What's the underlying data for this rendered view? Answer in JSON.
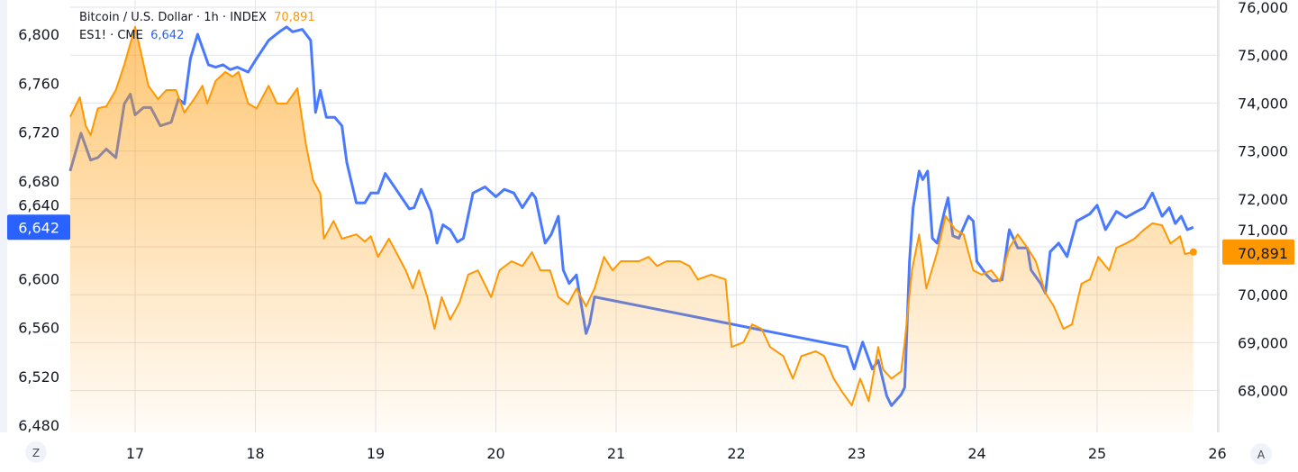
{
  "chart_data": {
    "type": "line",
    "title": "",
    "legend_placement": "top-left",
    "grid": true,
    "x_ticks": [
      "17",
      "18",
      "19",
      "20",
      "21",
      "22",
      "23",
      "24",
      "25",
      "26"
    ],
    "xlim": [
      16.46,
      26.0
    ],
    "left_axis": {
      "ticks": [
        "6,480",
        "6,520",
        "6,560",
        "6,600",
        "6,640",
        "6,680",
        "6,720",
        "6,760",
        "6,800"
      ],
      "tick_values": [
        6480,
        6520,
        6560,
        6600,
        6640,
        6680,
        6720,
        6760,
        6800
      ],
      "ylim": [
        6474,
        6823
      ]
    },
    "right_axis": {
      "ticks": [
        "68,000",
        "69,000",
        "70,000",
        "71,000",
        "72,000",
        "73,000",
        "74,000",
        "75,000",
        "76,000"
      ],
      "tick_values": [
        68000,
        69000,
        70000,
        71000,
        72000,
        73000,
        74000,
        75000,
        76000
      ],
      "ylim": [
        67120,
        76150
      ]
    },
    "series": [
      {
        "name": "Bitcoin / U.S. Dollar · 1h · INDEX",
        "axis": "right",
        "style": "area",
        "color": "#ff9800",
        "last_value": "70,891",
        "x": [
          16.46,
          16.54,
          16.59,
          16.63,
          16.69,
          16.76,
          16.84,
          16.91,
          17.0,
          17.06,
          17.11,
          17.19,
          17.26,
          17.34,
          17.41,
          17.49,
          17.56,
          17.6,
          17.67,
          17.75,
          17.81,
          17.86,
          17.94,
          18.01,
          18.11,
          18.18,
          18.26,
          18.35,
          18.42,
          18.48,
          18.54,
          18.57,
          18.65,
          18.72,
          18.84,
          18.91,
          18.96,
          19.02,
          19.11,
          19.17,
          19.25,
          19.31,
          19.36,
          19.43,
          19.49,
          19.55,
          19.62,
          19.7,
          19.77,
          19.85,
          19.96,
          20.03,
          20.13,
          20.22,
          20.3,
          20.37,
          20.45,
          20.52,
          20.6,
          20.67,
          20.75,
          20.82,
          20.9,
          20.97,
          21.04,
          21.19,
          21.27,
          21.34,
          21.42,
          21.53,
          21.61,
          21.68,
          21.79,
          21.91,
          21.96,
          22.06,
          22.13,
          22.21,
          22.28,
          22.39,
          22.47,
          22.54,
          22.66,
          22.73,
          22.81,
          22.88,
          22.96,
          23.03,
          23.1,
          23.18,
          23.22,
          23.29,
          23.37,
          23.4,
          23.46,
          23.52,
          23.58,
          23.67,
          23.74,
          23.82,
          23.89,
          23.97,
          24.04,
          24.12,
          24.19,
          24.27,
          24.34,
          24.42,
          24.49,
          24.57,
          24.64,
          24.72,
          24.79,
          24.87,
          24.94,
          25.01,
          25.1,
          25.16,
          25.24,
          25.31,
          25.39,
          25.46,
          25.54,
          25.61,
          25.69,
          25.73,
          25.8
        ],
        "values": [
          73710,
          74120,
          73520,
          73330,
          73890,
          73930,
          74270,
          74800,
          75590,
          74930,
          74360,
          74080,
          74270,
          74270,
          73800,
          74080,
          74360,
          73990,
          74460,
          74650,
          74550,
          74650,
          73990,
          73890,
          74360,
          73990,
          73990,
          74310,
          73140,
          72390,
          72110,
          71170,
          71540,
          71170,
          71260,
          71110,
          71220,
          70790,
          71170,
          70890,
          70510,
          70130,
          70510,
          69950,
          69290,
          69950,
          69480,
          69850,
          70420,
          70510,
          69950,
          70510,
          70700,
          70600,
          70890,
          70510,
          70510,
          69950,
          69800,
          70130,
          69760,
          70130,
          70790,
          70510,
          70700,
          70700,
          70790,
          70600,
          70700,
          70700,
          70600,
          70320,
          70420,
          70320,
          68910,
          69010,
          69380,
          69290,
          68910,
          68720,
          68250,
          68720,
          68820,
          68720,
          68250,
          67970,
          67690,
          68250,
          67780,
          68910,
          68440,
          68250,
          68400,
          69010,
          70510,
          71260,
          70130,
          70890,
          71640,
          71360,
          71260,
          70510,
          70420,
          70510,
          70280,
          70980,
          71260,
          70980,
          70700,
          70040,
          69760,
          69290,
          69380,
          70230,
          70320,
          70790,
          70510,
          70980,
          71070,
          71170,
          71360,
          71490,
          71450,
          71070,
          71220,
          70850,
          70891
        ]
      },
      {
        "name": "ES1! · CME",
        "axis": "left",
        "style": "line",
        "color": "#2962ff",
        "last_value": "6,642",
        "x": [
          16.46,
          16.55,
          16.63,
          16.69,
          16.76,
          16.84,
          16.91,
          16.96,
          17.0,
          17.07,
          17.13,
          17.21,
          17.3,
          17.36,
          17.41,
          17.46,
          17.52,
          17.61,
          17.67,
          17.73,
          17.79,
          17.85,
          17.94,
          18.01,
          18.11,
          18.2,
          18.26,
          18.31,
          18.39,
          18.46,
          18.5,
          18.54,
          18.59,
          18.66,
          18.72,
          18.76,
          18.84,
          18.91,
          18.96,
          19.02,
          19.08,
          19.17,
          19.28,
          19.32,
          19.38,
          19.46,
          19.51,
          19.56,
          19.62,
          19.68,
          19.73,
          19.81,
          19.91,
          20.0,
          20.07,
          20.15,
          20.22,
          20.3,
          20.33,
          20.41,
          20.46,
          20.52,
          20.56,
          20.61,
          20.67,
          20.75,
          20.78,
          20.82,
          22.92,
          22.98,
          23.05,
          23.13,
          23.18,
          23.25,
          23.29,
          23.37,
          23.4,
          23.44,
          23.47,
          23.52,
          23.55,
          23.59,
          23.63,
          23.67,
          23.73,
          23.76,
          23.8,
          23.85,
          23.93,
          23.97,
          24.0,
          24.08,
          24.13,
          24.21,
          24.27,
          24.34,
          24.42,
          24.45,
          24.53,
          24.57,
          24.61,
          24.68,
          24.75,
          24.83,
          24.94,
          25.0,
          25.07,
          25.16,
          25.24,
          25.33,
          25.39,
          25.46,
          25.54,
          25.6,
          25.65,
          25.7,
          25.75,
          25.8
        ],
        "values": [
          6688,
          6719,
          6697,
          6699,
          6706,
          6699,
          6743,
          6751,
          6734,
          6740,
          6740,
          6725,
          6728,
          6747,
          6743,
          6780,
          6800,
          6775,
          6773,
          6775,
          6771,
          6773,
          6769,
          6780,
          6795,
          6802,
          6806,
          6802,
          6804,
          6795,
          6736,
          6754,
          6732,
          6732,
          6725,
          6695,
          6662,
          6662,
          6670,
          6670,
          6686,
          6673,
          6657,
          6658,
          6673,
          6655,
          6629,
          6644,
          6640,
          6630,
          6633,
          6670,
          6675,
          6667,
          6673,
          6670,
          6658,
          6670,
          6666,
          6629,
          6636,
          6651,
          6607,
          6596,
          6603,
          6555,
          6563,
          6585,
          6544,
          6526,
          6548,
          6526,
          6533,
          6504,
          6496,
          6505,
          6511,
          6614,
          6658,
          6688,
          6681,
          6688,
          6633,
          6629,
          6655,
          6666,
          6635,
          6633,
          6651,
          6647,
          6614,
          6603,
          6598,
          6599,
          6640,
          6625,
          6625,
          6607,
          6596,
          6588,
          6622,
          6629,
          6618,
          6647,
          6653,
          6660,
          6640,
          6655,
          6650,
          6655,
          6658,
          6670,
          6651,
          6658,
          6645,
          6651,
          6640,
          6642
        ]
      }
    ]
  },
  "legend": {
    "btc_label": "Bitcoin / U.S. Dollar · 1h · INDEX",
    "btc_value": "70,891",
    "es_label": "ES1! · CME",
    "es_value": "6,642"
  },
  "buttons": {
    "left_scale": "Z",
    "right_scale": "A"
  }
}
